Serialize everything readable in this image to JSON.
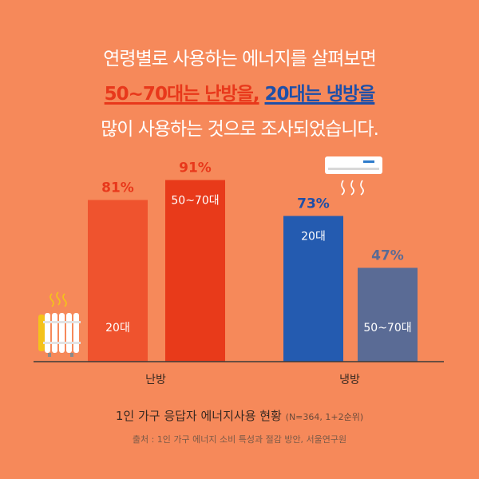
{
  "headline": {
    "line1": "연령별로 사용하는 에너지를 살펴보면",
    "line2_part1": "50~70대는 난방을,",
    "line2_space": " ",
    "line2_part2": "20대는 냉방을",
    "line3": "많이 사용하는 것으로 조사되었습니다."
  },
  "colors": {
    "background": "#F6895A",
    "heating_20s": "#EF532E",
    "heating_50_70s": "#E83A1A",
    "cooling_20s": "#245BB0",
    "cooling_50_70s": "#5A6B95",
    "baseline": "#3A3A3A"
  },
  "icons": [
    "heater-icon",
    "heat-waves-icon",
    "air-conditioner-icon",
    "airflow-icon"
  ],
  "chart_data": {
    "type": "bar",
    "categories": [
      "난방",
      "냉방"
    ],
    "groups": [
      {
        "category": "난방",
        "bars": [
          {
            "label": "20대",
            "value": 81,
            "value_label": "81%",
            "color": "#EF532E",
            "label_color": "#E8381B"
          },
          {
            "label": "50~70대",
            "value": 91,
            "value_label": "91%",
            "color": "#E83A1A",
            "label_color": "#E8381B"
          }
        ]
      },
      {
        "category": "냉방",
        "bars": [
          {
            "label": "20대",
            "value": 73,
            "value_label": "73%",
            "color": "#245BB0",
            "label_color": "#1E4FA8"
          },
          {
            "label": "50~70대",
            "value": 47,
            "value_label": "47%",
            "color": "#5A6B95",
            "label_color": "#5A6B95"
          }
        ]
      }
    ],
    "ylim": [
      0,
      100
    ],
    "title": "1인 가구 응답자 에너지사용 현황",
    "note": "(N=364, 1+2순위)",
    "source": "출처 : 1인 가구 에너지 소비 특성과 절감 방안, 서울연구원"
  }
}
